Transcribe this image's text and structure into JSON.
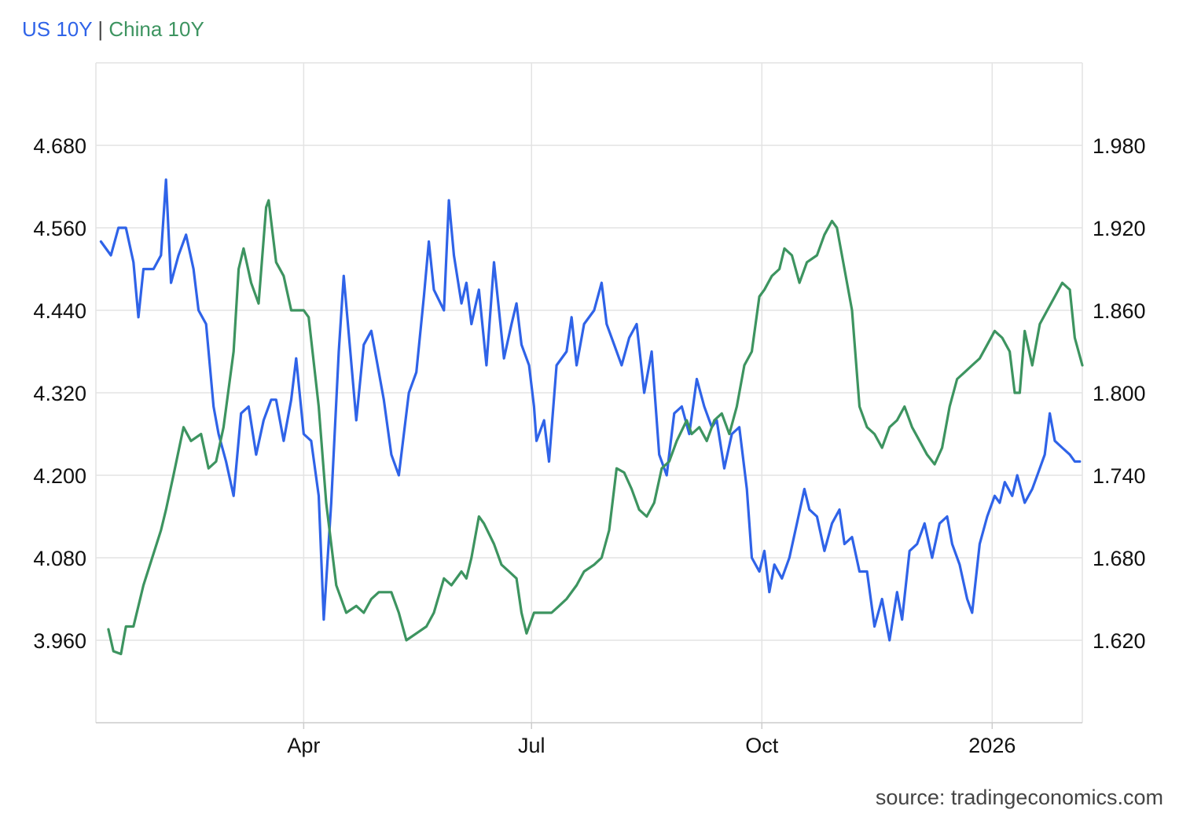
{
  "legend": {
    "us_label": "US 10Y",
    "separator": "|",
    "china_label": "China 10Y"
  },
  "source": "source: tradingeconomics.com",
  "colors": {
    "us": "#2f63e8",
    "china": "#3d9460",
    "grid": "#e3e3e3",
    "axis": "#cccccc",
    "text": "#111111"
  },
  "chart_data": {
    "type": "line",
    "grid": true,
    "x_labels": [
      "Apr",
      "Jul",
      "Oct",
      "2026"
    ],
    "x_tick_dates": [
      "2025-04-01",
      "2025-07-01",
      "2025-10-01",
      "2026-01-01"
    ],
    "x_range": [
      "2025-01-08",
      "2026-02-06"
    ],
    "y_left": {
      "ticks": [
        "4.680",
        "4.560",
        "4.440",
        "4.320",
        "4.200",
        "4.080",
        "3.960"
      ],
      "range": [
        3.84,
        4.8
      ]
    },
    "y_right": {
      "ticks": [
        "1.980",
        "1.920",
        "1.860",
        "1.800",
        "1.740",
        "1.680",
        "1.620"
      ],
      "range": [
        1.56,
        2.04
      ]
    },
    "series": [
      {
        "name": "US 10Y",
        "axis": "left",
        "points": [
          [
            "2025-01-10",
            4.54
          ],
          [
            "2025-01-14",
            4.52
          ],
          [
            "2025-01-17",
            4.56
          ],
          [
            "2025-01-20",
            4.56
          ],
          [
            "2025-01-23",
            4.51
          ],
          [
            "2025-01-25",
            4.43
          ],
          [
            "2025-01-27",
            4.5
          ],
          [
            "2025-01-31",
            4.5
          ],
          [
            "2025-02-03",
            4.52
          ],
          [
            "2025-02-05",
            4.63
          ],
          [
            "2025-02-07",
            4.48
          ],
          [
            "2025-02-10",
            4.52
          ],
          [
            "2025-02-13",
            4.55
          ],
          [
            "2025-02-16",
            4.5
          ],
          [
            "2025-02-18",
            4.44
          ],
          [
            "2025-02-21",
            4.42
          ],
          [
            "2025-02-24",
            4.3
          ],
          [
            "2025-02-26",
            4.26
          ],
          [
            "2025-03-01",
            4.22
          ],
          [
            "2025-03-04",
            4.17
          ],
          [
            "2025-03-07",
            4.29
          ],
          [
            "2025-03-10",
            4.3
          ],
          [
            "2025-03-13",
            4.23
          ],
          [
            "2025-03-16",
            4.28
          ],
          [
            "2025-03-19",
            4.31
          ],
          [
            "2025-03-21",
            4.31
          ],
          [
            "2025-03-24",
            4.25
          ],
          [
            "2025-03-27",
            4.31
          ],
          [
            "2025-03-29",
            4.37
          ],
          [
            "2025-04-01",
            4.26
          ],
          [
            "2025-04-04",
            4.25
          ],
          [
            "2025-04-07",
            4.17
          ],
          [
            "2025-04-09",
            3.99
          ],
          [
            "2025-04-12",
            4.16
          ],
          [
            "2025-04-15",
            4.38
          ],
          [
            "2025-04-17",
            4.49
          ],
          [
            "2025-04-22",
            4.28
          ],
          [
            "2025-04-25",
            4.39
          ],
          [
            "2025-04-28",
            4.41
          ],
          [
            "2025-04-30",
            4.37
          ],
          [
            "2025-05-03",
            4.31
          ],
          [
            "2025-05-06",
            4.23
          ],
          [
            "2025-05-09",
            4.2
          ],
          [
            "2025-05-13",
            4.32
          ],
          [
            "2025-05-16",
            4.35
          ],
          [
            "2025-05-19",
            4.46
          ],
          [
            "2025-05-21",
            4.54
          ],
          [
            "2025-05-23",
            4.47
          ],
          [
            "2025-05-27",
            4.44
          ],
          [
            "2025-05-29",
            4.6
          ],
          [
            "2025-05-31",
            4.52
          ],
          [
            "2025-06-03",
            4.45
          ],
          [
            "2025-06-05",
            4.48
          ],
          [
            "2025-06-07",
            4.42
          ],
          [
            "2025-06-10",
            4.47
          ],
          [
            "2025-06-13",
            4.36
          ],
          [
            "2025-06-16",
            4.51
          ],
          [
            "2025-06-20",
            4.37
          ],
          [
            "2025-06-23",
            4.42
          ],
          [
            "2025-06-25",
            4.45
          ],
          [
            "2025-06-27",
            4.39
          ],
          [
            "2025-06-30",
            4.36
          ],
          [
            "2025-07-02",
            4.3
          ],
          [
            "2025-07-03",
            4.25
          ],
          [
            "2025-07-06",
            4.28
          ],
          [
            "2025-07-08",
            4.22
          ],
          [
            "2025-07-11",
            4.36
          ],
          [
            "2025-07-15",
            4.38
          ],
          [
            "2025-07-17",
            4.43
          ],
          [
            "2025-07-19",
            4.36
          ],
          [
            "2025-07-22",
            4.42
          ],
          [
            "2025-07-26",
            4.44
          ],
          [
            "2025-07-29",
            4.48
          ],
          [
            "2025-07-31",
            4.42
          ],
          [
            "2025-08-03",
            4.39
          ],
          [
            "2025-08-06",
            4.36
          ],
          [
            "2025-08-09",
            4.4
          ],
          [
            "2025-08-12",
            4.42
          ],
          [
            "2025-08-15",
            4.32
          ],
          [
            "2025-08-18",
            4.38
          ],
          [
            "2025-08-21",
            4.23
          ],
          [
            "2025-08-24",
            4.2
          ],
          [
            "2025-08-27",
            4.29
          ],
          [
            "2025-08-30",
            4.3
          ],
          [
            "2025-09-02",
            4.26
          ],
          [
            "2025-09-05",
            4.34
          ],
          [
            "2025-09-08",
            4.3
          ],
          [
            "2025-09-11",
            4.27
          ],
          [
            "2025-09-13",
            4.28
          ],
          [
            "2025-09-16",
            4.21
          ],
          [
            "2025-09-19",
            4.26
          ],
          [
            "2025-09-22",
            4.27
          ],
          [
            "2025-09-25",
            4.18
          ],
          [
            "2025-09-27",
            4.08
          ],
          [
            "2025-09-30",
            4.06
          ],
          [
            "2025-10-02",
            4.09
          ],
          [
            "2025-10-04",
            4.03
          ],
          [
            "2025-10-06",
            4.07
          ],
          [
            "2025-10-09",
            4.05
          ],
          [
            "2025-10-12",
            4.08
          ],
          [
            "2025-10-15",
            4.13
          ],
          [
            "2025-10-18",
            4.18
          ],
          [
            "2025-10-20",
            4.15
          ],
          [
            "2025-10-23",
            4.14
          ],
          [
            "2025-10-26",
            4.09
          ],
          [
            "2025-10-29",
            4.13
          ],
          [
            "2025-11-01",
            4.15
          ],
          [
            "2025-11-03",
            4.1
          ],
          [
            "2025-11-06",
            4.11
          ],
          [
            "2025-11-09",
            4.06
          ],
          [
            "2025-11-12",
            4.06
          ],
          [
            "2025-11-15",
            3.98
          ],
          [
            "2025-11-18",
            4.02
          ],
          [
            "2025-11-21",
            3.96
          ],
          [
            "2025-11-24",
            4.03
          ],
          [
            "2025-11-26",
            3.99
          ],
          [
            "2025-11-29",
            4.09
          ],
          [
            "2025-12-02",
            4.1
          ],
          [
            "2025-12-05",
            4.13
          ],
          [
            "2025-12-08",
            4.08
          ],
          [
            "2025-12-11",
            4.13
          ],
          [
            "2025-12-14",
            4.14
          ],
          [
            "2025-12-16",
            4.1
          ],
          [
            "2025-12-19",
            4.07
          ],
          [
            "2025-12-22",
            4.02
          ],
          [
            "2025-12-24",
            4.0
          ],
          [
            "2025-12-27",
            4.1
          ],
          [
            "2025-12-30",
            4.14
          ],
          [
            "2026-01-02",
            4.17
          ],
          [
            "2026-01-04",
            4.16
          ],
          [
            "2026-01-06",
            4.19
          ],
          [
            "2026-01-09",
            4.17
          ],
          [
            "2026-01-11",
            4.2
          ],
          [
            "2026-01-14",
            4.16
          ],
          [
            "2026-01-17",
            4.18
          ],
          [
            "2026-01-19",
            4.2
          ],
          [
            "2026-01-22",
            4.23
          ],
          [
            "2026-01-24",
            4.29
          ],
          [
            "2026-01-26",
            4.25
          ],
          [
            "2026-01-29",
            4.24
          ],
          [
            "2026-02-01",
            4.23
          ],
          [
            "2026-02-03",
            4.22
          ],
          [
            "2026-02-05",
            4.22
          ]
        ]
      },
      {
        "name": "China 10Y",
        "axis": "right",
        "points": [
          [
            "2025-01-13",
            1.628
          ],
          [
            "2025-01-15",
            1.612
          ],
          [
            "2025-01-18",
            1.61
          ],
          [
            "2025-01-20",
            1.63
          ],
          [
            "2025-01-23",
            1.63
          ],
          [
            "2025-01-27",
            1.66
          ],
          [
            "2025-02-03",
            1.7
          ],
          [
            "2025-02-05",
            1.715
          ],
          [
            "2025-02-08",
            1.74
          ],
          [
            "2025-02-12",
            1.775
          ],
          [
            "2025-02-15",
            1.765
          ],
          [
            "2025-02-19",
            1.77
          ],
          [
            "2025-02-22",
            1.745
          ],
          [
            "2025-02-25",
            1.75
          ],
          [
            "2025-02-28",
            1.775
          ],
          [
            "2025-03-04",
            1.83
          ],
          [
            "2025-03-06",
            1.89
          ],
          [
            "2025-03-08",
            1.905
          ],
          [
            "2025-03-11",
            1.88
          ],
          [
            "2025-03-14",
            1.865
          ],
          [
            "2025-03-17",
            1.935
          ],
          [
            "2025-03-18",
            1.94
          ],
          [
            "2025-03-21",
            1.895
          ],
          [
            "2025-03-24",
            1.885
          ],
          [
            "2025-03-27",
            1.86
          ],
          [
            "2025-04-01",
            1.86
          ],
          [
            "2025-04-03",
            1.855
          ],
          [
            "2025-04-07",
            1.79
          ],
          [
            "2025-04-10",
            1.72
          ],
          [
            "2025-04-14",
            1.66
          ],
          [
            "2025-04-18",
            1.64
          ],
          [
            "2025-04-22",
            1.645
          ],
          [
            "2025-04-25",
            1.64
          ],
          [
            "2025-04-28",
            1.65
          ],
          [
            "2025-05-01",
            1.655
          ],
          [
            "2025-05-06",
            1.655
          ],
          [
            "2025-05-09",
            1.64
          ],
          [
            "2025-05-12",
            1.62
          ],
          [
            "2025-05-16",
            1.625
          ],
          [
            "2025-05-20",
            1.63
          ],
          [
            "2025-05-23",
            1.64
          ],
          [
            "2025-05-27",
            1.665
          ],
          [
            "2025-05-30",
            1.66
          ],
          [
            "2025-06-03",
            1.67
          ],
          [
            "2025-06-05",
            1.665
          ],
          [
            "2025-06-07",
            1.68
          ],
          [
            "2025-06-10",
            1.71
          ],
          [
            "2025-06-12",
            1.705
          ],
          [
            "2025-06-16",
            1.69
          ],
          [
            "2025-06-19",
            1.675
          ],
          [
            "2025-06-22",
            1.67
          ],
          [
            "2025-06-25",
            1.665
          ],
          [
            "2025-06-27",
            1.64
          ],
          [
            "2025-06-29",
            1.625
          ],
          [
            "2025-07-02",
            1.64
          ],
          [
            "2025-07-06",
            1.64
          ],
          [
            "2025-07-09",
            1.64
          ],
          [
            "2025-07-12",
            1.645
          ],
          [
            "2025-07-15",
            1.65
          ],
          [
            "2025-07-19",
            1.66
          ],
          [
            "2025-07-22",
            1.67
          ],
          [
            "2025-07-26",
            1.675
          ],
          [
            "2025-07-29",
            1.68
          ],
          [
            "2025-08-01",
            1.7
          ],
          [
            "2025-08-04",
            1.745
          ],
          [
            "2025-08-07",
            1.742
          ],
          [
            "2025-08-10",
            1.73
          ],
          [
            "2025-08-13",
            1.715
          ],
          [
            "2025-08-16",
            1.71
          ],
          [
            "2025-08-19",
            1.72
          ],
          [
            "2025-08-22",
            1.745
          ],
          [
            "2025-08-25",
            1.75
          ],
          [
            "2025-08-28",
            1.765
          ],
          [
            "2025-09-01",
            1.78
          ],
          [
            "2025-09-03",
            1.77
          ],
          [
            "2025-09-06",
            1.775
          ],
          [
            "2025-09-09",
            1.765
          ],
          [
            "2025-09-12",
            1.78
          ],
          [
            "2025-09-15",
            1.785
          ],
          [
            "2025-09-18",
            1.77
          ],
          [
            "2025-09-21",
            1.79
          ],
          [
            "2025-09-24",
            1.82
          ],
          [
            "2025-09-27",
            1.83
          ],
          [
            "2025-09-30",
            1.87
          ],
          [
            "2025-10-02",
            1.875
          ],
          [
            "2025-10-05",
            1.885
          ],
          [
            "2025-10-08",
            1.89
          ],
          [
            "2025-10-10",
            1.905
          ],
          [
            "2025-10-13",
            1.9
          ],
          [
            "2025-10-16",
            1.88
          ],
          [
            "2025-10-19",
            1.895
          ],
          [
            "2025-10-23",
            1.9
          ],
          [
            "2025-10-26",
            1.915
          ],
          [
            "2025-10-29",
            1.925
          ],
          [
            "2025-10-31",
            1.92
          ],
          [
            "2025-11-03",
            1.89
          ],
          [
            "2025-11-06",
            1.86
          ],
          [
            "2025-11-09",
            1.79
          ],
          [
            "2025-11-12",
            1.775
          ],
          [
            "2025-11-15",
            1.77
          ],
          [
            "2025-11-18",
            1.76
          ],
          [
            "2025-11-21",
            1.775
          ],
          [
            "2025-11-24",
            1.78
          ],
          [
            "2025-11-27",
            1.79
          ],
          [
            "2025-11-30",
            1.775
          ],
          [
            "2025-12-03",
            1.765
          ],
          [
            "2025-12-06",
            1.755
          ],
          [
            "2025-12-09",
            1.748
          ],
          [
            "2025-12-12",
            1.76
          ],
          [
            "2025-12-15",
            1.79
          ],
          [
            "2025-12-18",
            1.81
          ],
          [
            "2025-12-21",
            1.815
          ],
          [
            "2025-12-24",
            1.82
          ],
          [
            "2025-12-27",
            1.825
          ],
          [
            "2025-12-30",
            1.835
          ],
          [
            "2026-01-02",
            1.845
          ],
          [
            "2026-01-05",
            1.84
          ],
          [
            "2026-01-08",
            1.83
          ],
          [
            "2026-01-10",
            1.8
          ],
          [
            "2026-01-12",
            1.8
          ],
          [
            "2026-01-14",
            1.845
          ],
          [
            "2026-01-17",
            1.82
          ],
          [
            "2026-01-20",
            1.85
          ],
          [
            "2026-01-23",
            1.86
          ],
          [
            "2026-01-26",
            1.87
          ],
          [
            "2026-01-29",
            1.88
          ],
          [
            "2026-02-01",
            1.875
          ],
          [
            "2026-02-03",
            1.84
          ],
          [
            "2026-02-06",
            1.82
          ]
        ]
      }
    ]
  }
}
